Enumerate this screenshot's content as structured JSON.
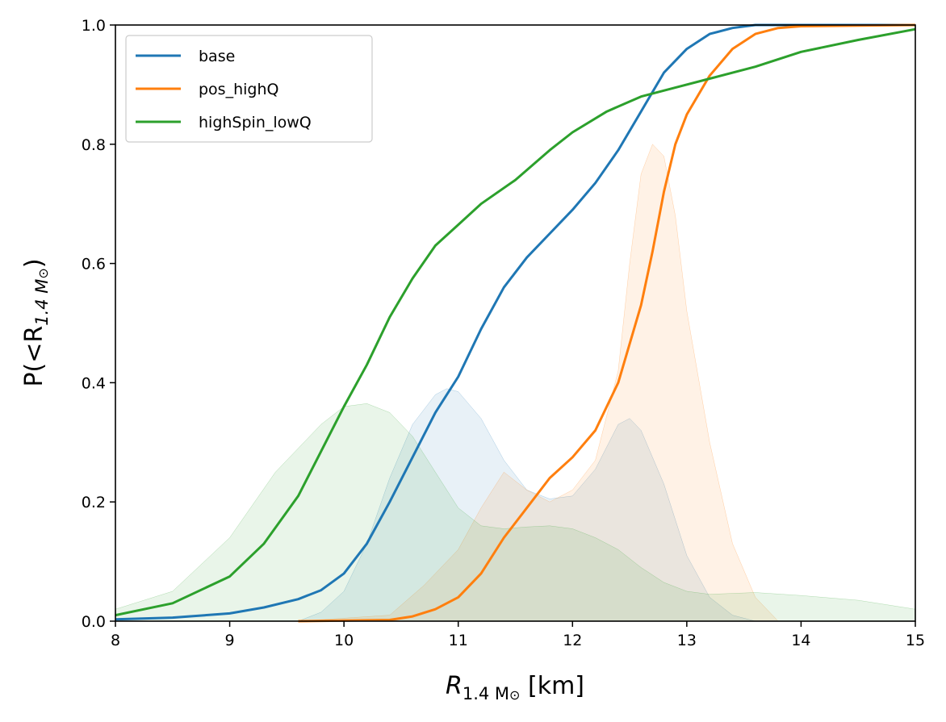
{
  "chart_data": {
    "type": "line",
    "xlabel": {
      "main": "R",
      "sub": "1.4 M",
      "sub_sym": "⊙",
      "unit": " [km]"
    },
    "ylabel": {
      "main": "P(<R",
      "sub": "1.4 M",
      "sub_sym": "⊙",
      "close": ")"
    },
    "xlim": [
      8,
      15
    ],
    "ylim": [
      0,
      1
    ],
    "xticks": [
      "8",
      "9",
      "10",
      "11",
      "12",
      "13",
      "14",
      "15"
    ],
    "yticks": [
      "0.0",
      "0.2",
      "0.4",
      "0.6",
      "0.8",
      "1.0"
    ],
    "grid": false,
    "legend_position": "top-left",
    "series": [
      {
        "name": "base",
        "color": "#1f77b4",
        "cdf": {
          "x": [
            8.0,
            8.5,
            9.0,
            9.3,
            9.6,
            9.8,
            10.0,
            10.2,
            10.4,
            10.6,
            10.8,
            11.0,
            11.2,
            11.4,
            11.6,
            11.8,
            12.0,
            12.2,
            12.4,
            12.6,
            12.8,
            13.0,
            13.2,
            13.4,
            13.6,
            15.0
          ],
          "y": [
            0.003,
            0.006,
            0.013,
            0.023,
            0.037,
            0.052,
            0.08,
            0.13,
            0.2,
            0.275,
            0.35,
            0.41,
            0.49,
            0.56,
            0.61,
            0.65,
            0.69,
            0.735,
            0.79,
            0.855,
            0.92,
            0.96,
            0.985,
            0.995,
            1.0,
            1.0
          ]
        },
        "pdf": {
          "x": [
            9.6,
            9.8,
            10.0,
            10.2,
            10.4,
            10.6,
            10.8,
            10.9,
            11.0,
            11.2,
            11.4,
            11.6,
            11.8,
            12.0,
            12.2,
            12.4,
            12.5,
            12.6,
            12.8,
            13.0,
            13.2,
            13.4,
            13.6
          ],
          "y": [
            0.0,
            0.015,
            0.05,
            0.13,
            0.24,
            0.33,
            0.38,
            0.39,
            0.385,
            0.34,
            0.27,
            0.22,
            0.205,
            0.21,
            0.255,
            0.33,
            0.34,
            0.32,
            0.23,
            0.11,
            0.04,
            0.01,
            0.0
          ]
        }
      },
      {
        "name": "pos_highQ",
        "color": "#ff7f0e",
        "cdf": {
          "x": [
            9.6,
            10.4,
            10.6,
            10.8,
            11.0,
            11.2,
            11.4,
            11.6,
            11.8,
            12.0,
            12.2,
            12.4,
            12.6,
            12.7,
            12.8,
            12.9,
            13.0,
            13.2,
            13.4,
            13.6,
            13.8,
            14.0,
            15.0
          ],
          "y": [
            0.0,
            0.002,
            0.008,
            0.02,
            0.04,
            0.08,
            0.14,
            0.19,
            0.24,
            0.275,
            0.32,
            0.4,
            0.53,
            0.62,
            0.72,
            0.8,
            0.85,
            0.915,
            0.96,
            0.985,
            0.995,
            0.998,
            1.0
          ]
        },
        "pdf": {
          "x": [
            9.6,
            10.4,
            10.7,
            11.0,
            11.2,
            11.4,
            11.6,
            11.8,
            12.0,
            12.2,
            12.4,
            12.5,
            12.6,
            12.7,
            12.8,
            12.9,
            13.0,
            13.2,
            13.4,
            13.6,
            13.8
          ],
          "y": [
            0.0,
            0.01,
            0.06,
            0.12,
            0.19,
            0.25,
            0.22,
            0.2,
            0.22,
            0.27,
            0.42,
            0.6,
            0.75,
            0.8,
            0.78,
            0.68,
            0.52,
            0.3,
            0.13,
            0.04,
            0.0
          ]
        }
      },
      {
        "name": "highSpin_lowQ",
        "color": "#2ca02c",
        "cdf": {
          "x": [
            8.0,
            8.5,
            9.0,
            9.3,
            9.6,
            9.8,
            10.0,
            10.2,
            10.4,
            10.6,
            10.8,
            11.0,
            11.2,
            11.5,
            11.8,
            12.0,
            12.3,
            12.6,
            12.9,
            13.2,
            13.6,
            14.0,
            14.5,
            15.0
          ],
          "y": [
            0.01,
            0.03,
            0.075,
            0.13,
            0.21,
            0.285,
            0.36,
            0.43,
            0.51,
            0.575,
            0.63,
            0.665,
            0.7,
            0.74,
            0.79,
            0.82,
            0.855,
            0.88,
            0.895,
            0.91,
            0.93,
            0.955,
            0.975,
            0.993
          ]
        },
        "pdf": {
          "x": [
            8.0,
            8.5,
            9.0,
            9.4,
            9.8,
            10.0,
            10.2,
            10.4,
            10.6,
            10.8,
            11.0,
            11.2,
            11.4,
            11.6,
            11.8,
            12.0,
            12.2,
            12.4,
            12.6,
            12.8,
            13.0,
            13.2,
            13.6,
            14.0,
            14.5,
            15.0
          ],
          "y": [
            0.02,
            0.05,
            0.14,
            0.25,
            0.33,
            0.36,
            0.365,
            0.35,
            0.31,
            0.25,
            0.19,
            0.16,
            0.155,
            0.158,
            0.16,
            0.155,
            0.14,
            0.12,
            0.09,
            0.065,
            0.05,
            0.045,
            0.048,
            0.043,
            0.035,
            0.02
          ]
        }
      }
    ]
  }
}
